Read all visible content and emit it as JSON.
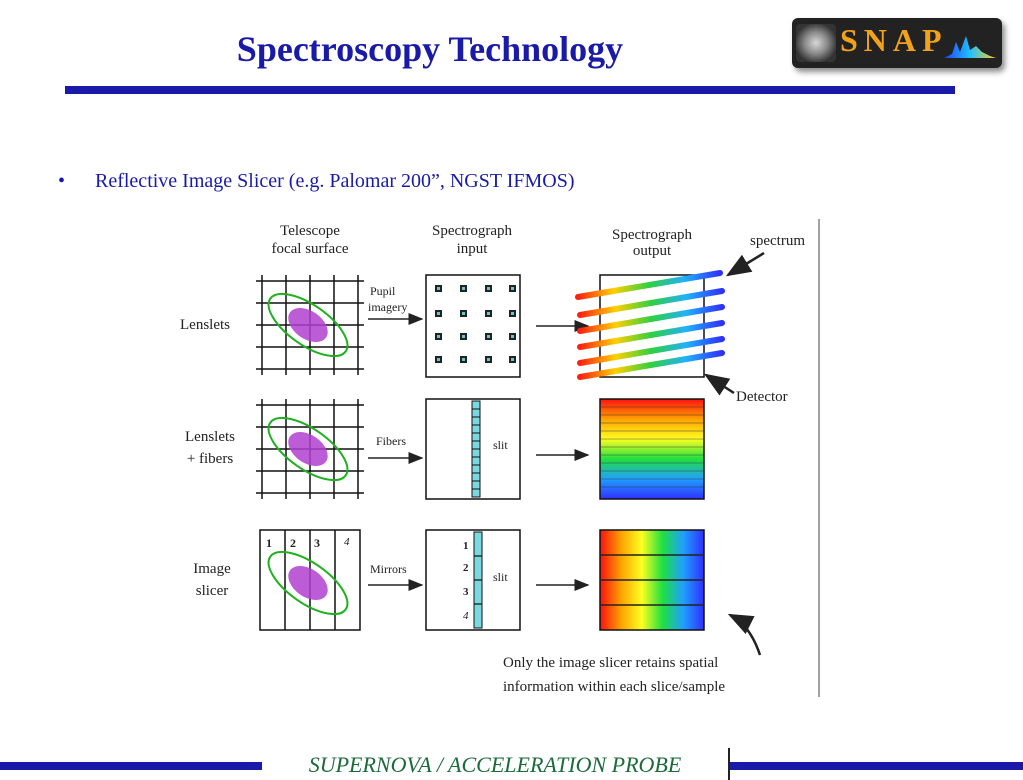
{
  "slide": {
    "title": "Spectroscopy Technology",
    "bullet_marker": "•",
    "bullet": "Reflective Image Slicer (e.g. Palomar 200”, NGST IFMOS)",
    "footer": "SUPERNOVA  /  ACCELERATION PROBE",
    "logo_text": "SNAP"
  },
  "colors": {
    "title": "#1a1aa8",
    "rule": "#1a1aa8",
    "footer_text": "#1a6a3a",
    "logo_text": "#f2a21a",
    "ellipse_fill": "#b040d0",
    "ellipse_outline": "#20b020",
    "slit_fill": "#7ad8e0"
  },
  "diagram": {
    "col_headers": [
      [
        "Telescope",
        "focal surface"
      ],
      [
        "Spectrograph",
        "input"
      ],
      [
        "Spectrograph",
        "output"
      ]
    ],
    "rows": [
      {
        "label": [
          "Lenslets"
        ],
        "arrow_label": [
          "Pupil",
          "imagery"
        ]
      },
      {
        "label": [
          "Lenslets",
          "+ fibers"
        ],
        "arrow_label": [
          "Fibers"
        ]
      },
      {
        "label": [
          "Image",
          "slicer"
        ],
        "arrow_label": [
          "Mirrors"
        ]
      }
    ],
    "slit_label": "slit",
    "slice_numbers": [
      "1",
      "2",
      "3",
      "4"
    ],
    "callouts": {
      "spectrum": "spectrum",
      "detector": "Detector",
      "note": [
        "Only the image slicer retains spatial",
        "information within each slice/sample"
      ]
    }
  }
}
